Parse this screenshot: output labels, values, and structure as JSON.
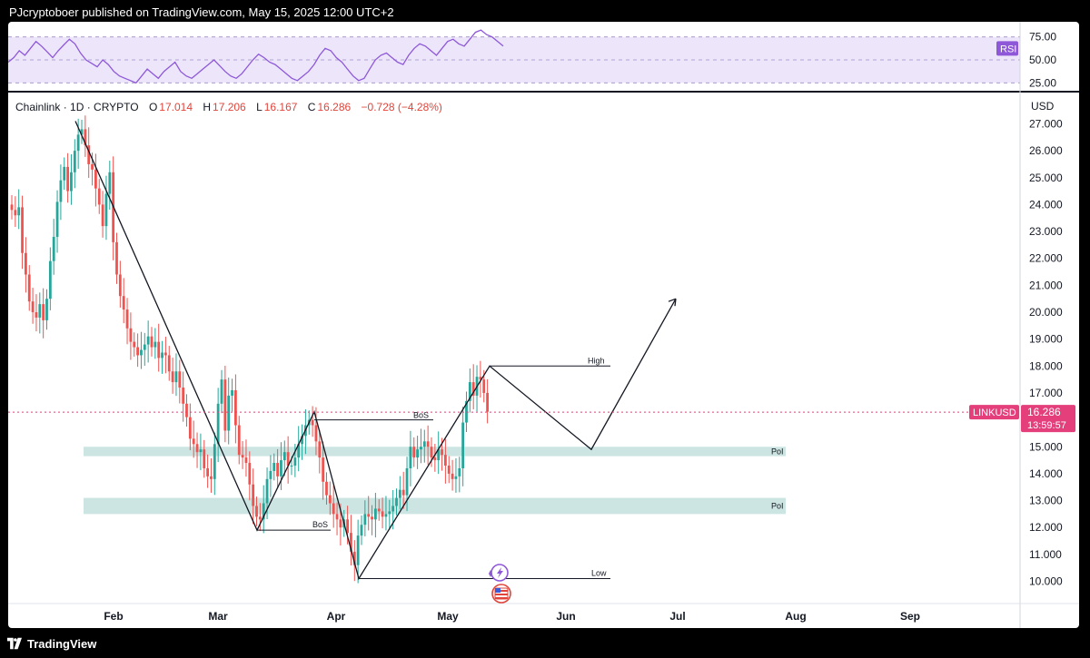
{
  "header": {
    "text": "PJcryptoboer published on TradingView.com, May 15, 2025 12:00 UTC+2"
  },
  "footer": {
    "brand": "TradingView"
  },
  "colors": {
    "up": "#26a69a",
    "down": "#ef5350",
    "poi_zone": "#cde5e2",
    "rsi_line": "#8e58d9",
    "rsi_band": "#ede6fb",
    "price_tag": "#e43f7b",
    "rsi_tag": "#8e58d9"
  },
  "rsi": {
    "label": "RSI",
    "ticks": [
      "75.00",
      "50.00",
      "25.00"
    ],
    "levels": [
      70,
      50,
      30
    ],
    "values": [
      48,
      52,
      58,
      54,
      60,
      66,
      62,
      57,
      52,
      58,
      63,
      68,
      64,
      56,
      50,
      47,
      44,
      50,
      46,
      40,
      36,
      34,
      32,
      30,
      36,
      42,
      38,
      34,
      40,
      44,
      48,
      40,
      36,
      34,
      38,
      42,
      46,
      50,
      45,
      40,
      36,
      34,
      38,
      44,
      50,
      55,
      52,
      48,
      46,
      42,
      38,
      34,
      32,
      36,
      40,
      46,
      54,
      60,
      58,
      52,
      48,
      42,
      36,
      32,
      34,
      42,
      50,
      54,
      56,
      52,
      48,
      46,
      54,
      60,
      64,
      62,
      58,
      54,
      60,
      66,
      68,
      64,
      62,
      68,
      74,
      76,
      72,
      70,
      66,
      62
    ]
  },
  "chart_data": {
    "type": "candlestick",
    "symbol": "Chainlink · 1D · CRYPTO",
    "ohlc": {
      "o_label": "O",
      "o": "17.014",
      "h_label": "H",
      "h": "17.206",
      "l_label": "L",
      "l": "16.167",
      "c_label": "C",
      "c": "16.286",
      "change": "−0.728 (−4.28%)"
    },
    "currency": "USD",
    "ylim": [
      9.4,
      27.4
    ],
    "y_ticks": [
      "27.000",
      "26.000",
      "25.000",
      "24.000",
      "23.000",
      "22.000",
      "21.000",
      "20.000",
      "19.000",
      "18.000",
      "17.000",
      "16.000",
      "15.000",
      "14.000",
      "13.000",
      "12.000",
      "11.000",
      "10.000"
    ],
    "x_ticks": [
      "Feb",
      "Mar",
      "Apr",
      "May",
      "Jun",
      "Jul",
      "Aug",
      "Sep"
    ],
    "x_tick_dates": [
      "2025-02-01",
      "2025-03-01",
      "2025-04-01",
      "2025-05-01",
      "2025-06-01",
      "2025-07-01",
      "2025-08-01",
      "2025-09-01"
    ],
    "closes": [
      23.8,
      23.6,
      23.9,
      22.2,
      21.4,
      20.4,
      20.0,
      19.8,
      20.3,
      19.7,
      20.5,
      21.9,
      22.8,
      24.1,
      24.9,
      25.4,
      24.5,
      25.2,
      26.0,
      26.6,
      26.8,
      26.2,
      25.5,
      25.3,
      24.6,
      24.0,
      23.2,
      24.4,
      25.2,
      22.6,
      21.4,
      20.6,
      20.1,
      19.4,
      18.9,
      18.7,
      18.4,
      18.6,
      18.8,
      19.1,
      18.7,
      18.9,
      18.3,
      18.5,
      18.4,
      17.8,
      17.4,
      17.8,
      17.2,
      16.6,
      16.1,
      15.3,
      15.1,
      14.8,
      14.9,
      14.2,
      13.9,
      13.8,
      15.1,
      16.6,
      17.5,
      15.6,
      16.9,
      17.1,
      15.8,
      14.7,
      14.6,
      14.4,
      13.6,
      12.8,
      12.4,
      12.3,
      12.9,
      13.8,
      14.1,
      14.4,
      13.9,
      14.5,
      14.8,
      14.3,
      14.3,
      14.6,
      15.1,
      15.4,
      15.8,
      16.0,
      15.8,
      15.2,
      14.6,
      13.7,
      13.2,
      12.9,
      12.5,
      12.3,
      12.0,
      12.3,
      11.8,
      11.1,
      10.6,
      11.7,
      12.1,
      12.5,
      12.4,
      12.3,
      12.7,
      12.6,
      12.4,
      12.5,
      12.6,
      12.8,
      13.1,
      13.4,
      13.2,
      14.2,
      15.0,
      14.6,
      14.9,
      15.0,
      15.2,
      15.0,
      14.6,
      14.5,
      14.9,
      14.7,
      14.3,
      14.0,
      13.8,
      13.9,
      14.2,
      15.9,
      16.7,
      17.4,
      16.9,
      17.6,
      17.5,
      17.0,
      16.3
    ],
    "annotations": {
      "bos_upper": "BoS",
      "bos_lower": "BoS",
      "high": "High",
      "low": "Low",
      "poi_upper": "PoI",
      "poi_lower": "PoI"
    },
    "poi_zones": [
      {
        "top": 15.0,
        "bottom": 14.65
      },
      {
        "top": 13.1,
        "bottom": 12.5
      }
    ],
    "last_price": {
      "symbol": "LINKUSD",
      "price": "16.286",
      "countdown": "13:59:57",
      "value": 16.286
    }
  }
}
